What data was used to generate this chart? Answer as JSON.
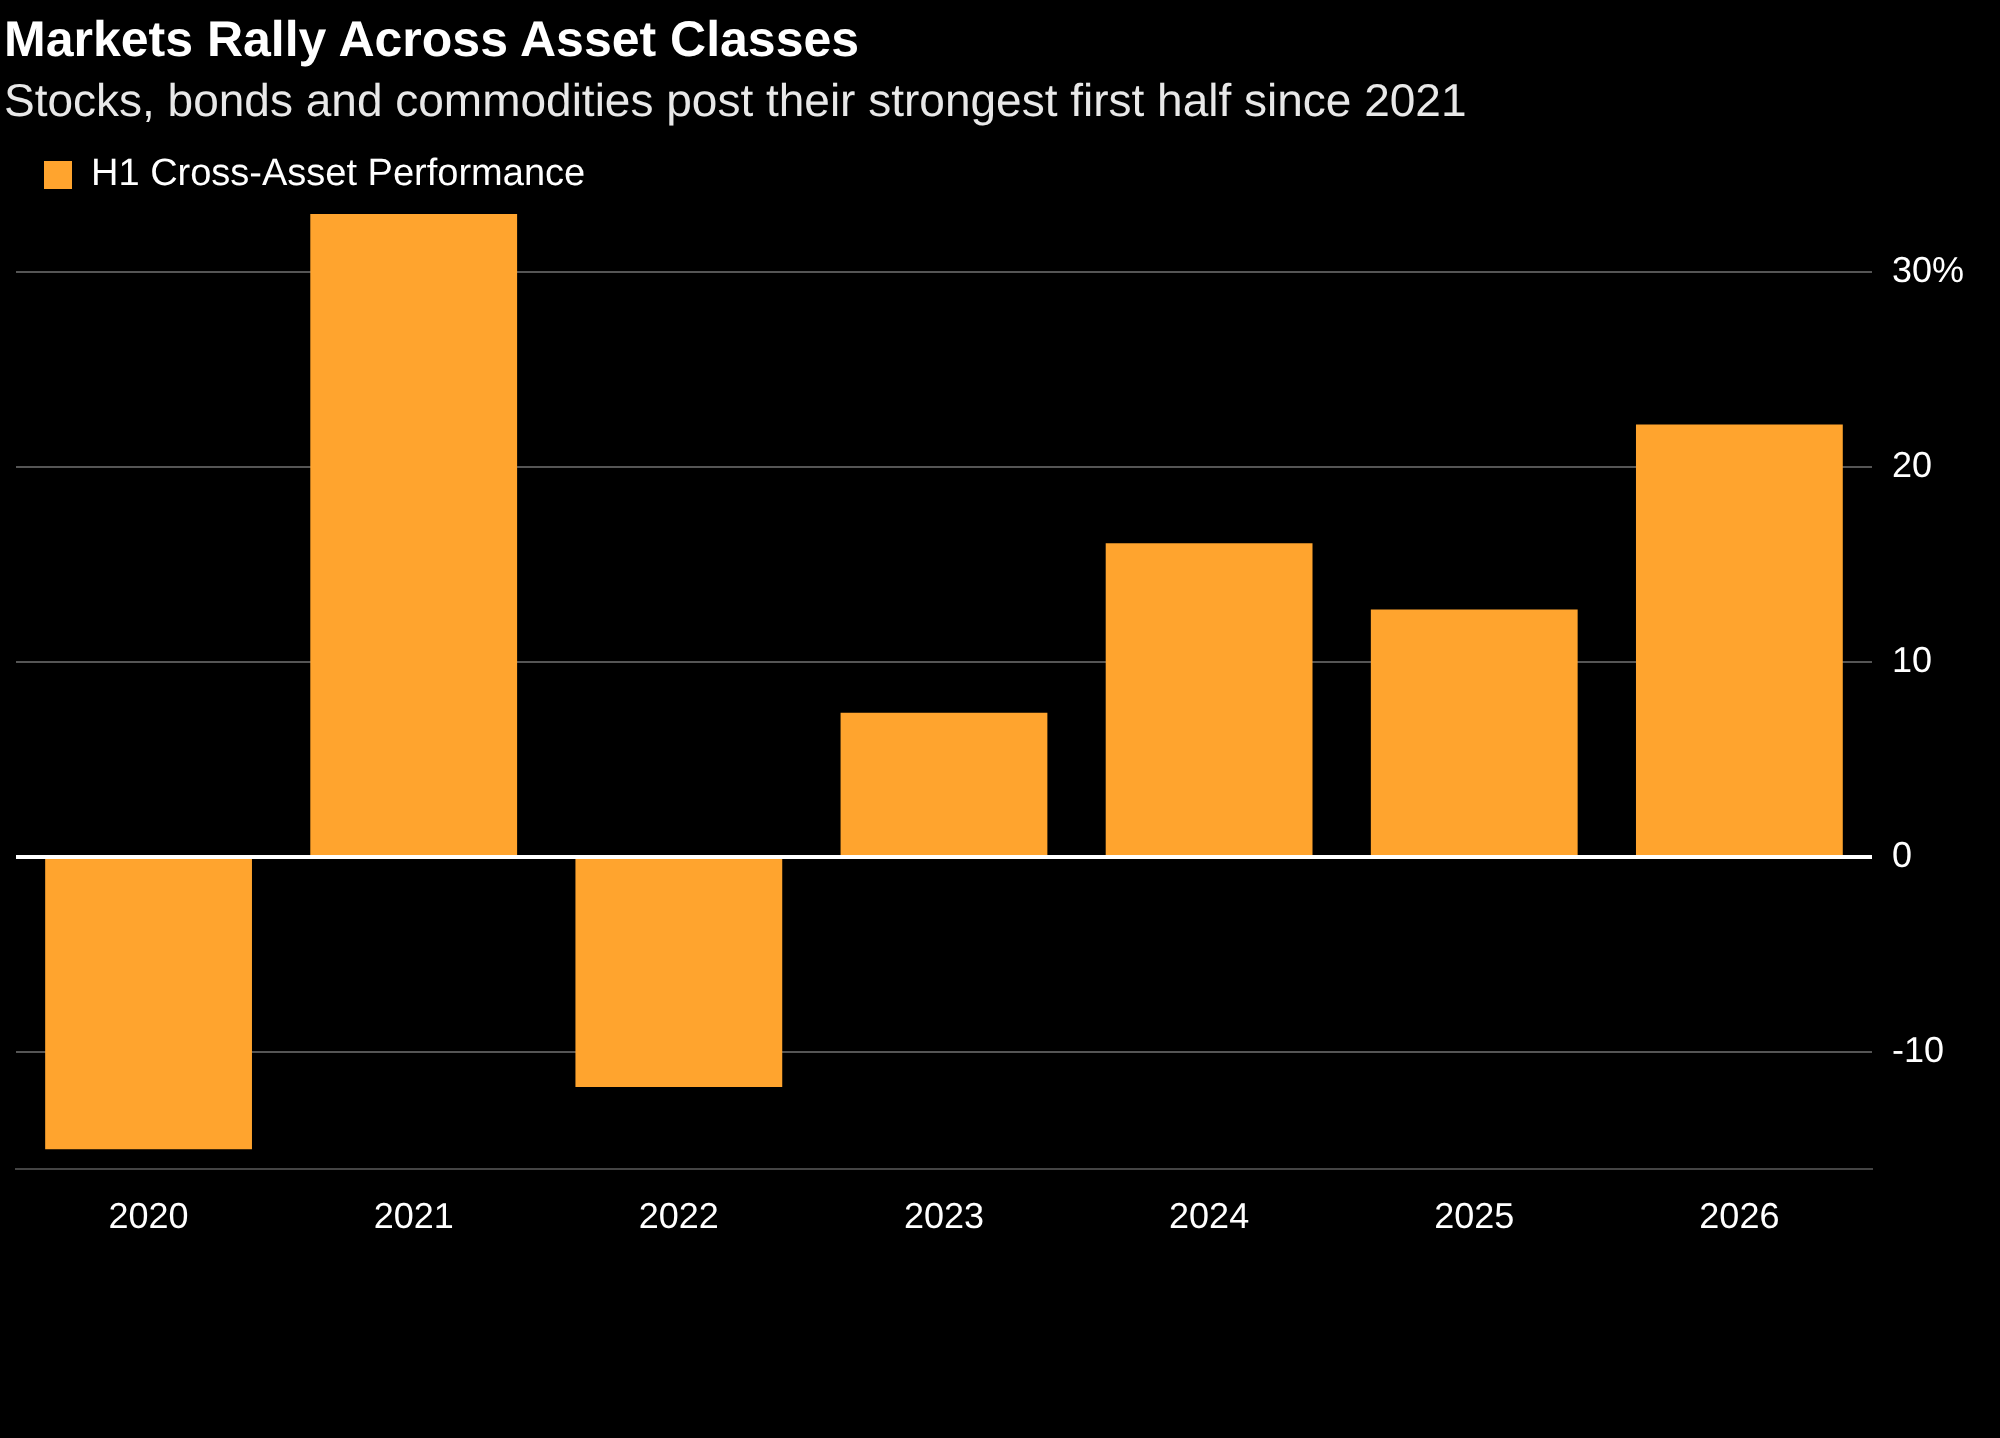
{
  "chart_data": {
    "type": "bar",
    "title": "Markets Rally Across Asset Classes",
    "subtitle": "Stocks, bonds and commodities post their strongest first half since 2021",
    "categories": [
      "2020",
      "2021",
      "2022",
      "2023",
      "2024",
      "2025",
      "2026"
    ],
    "series": [
      {
        "name": "H1 Cross-Asset Performance",
        "color": "#ffa42e",
        "values": [
          -15,
          33,
          -11.8,
          7.4,
          16.1,
          12.7,
          22.2
        ]
      }
    ],
    "ylim": [
      -16,
      33
    ],
    "yticks": [
      -10,
      0,
      10,
      20,
      {
        "value": 30,
        "label": "30%"
      }
    ],
    "grid": "y",
    "legend": "top left"
  }
}
